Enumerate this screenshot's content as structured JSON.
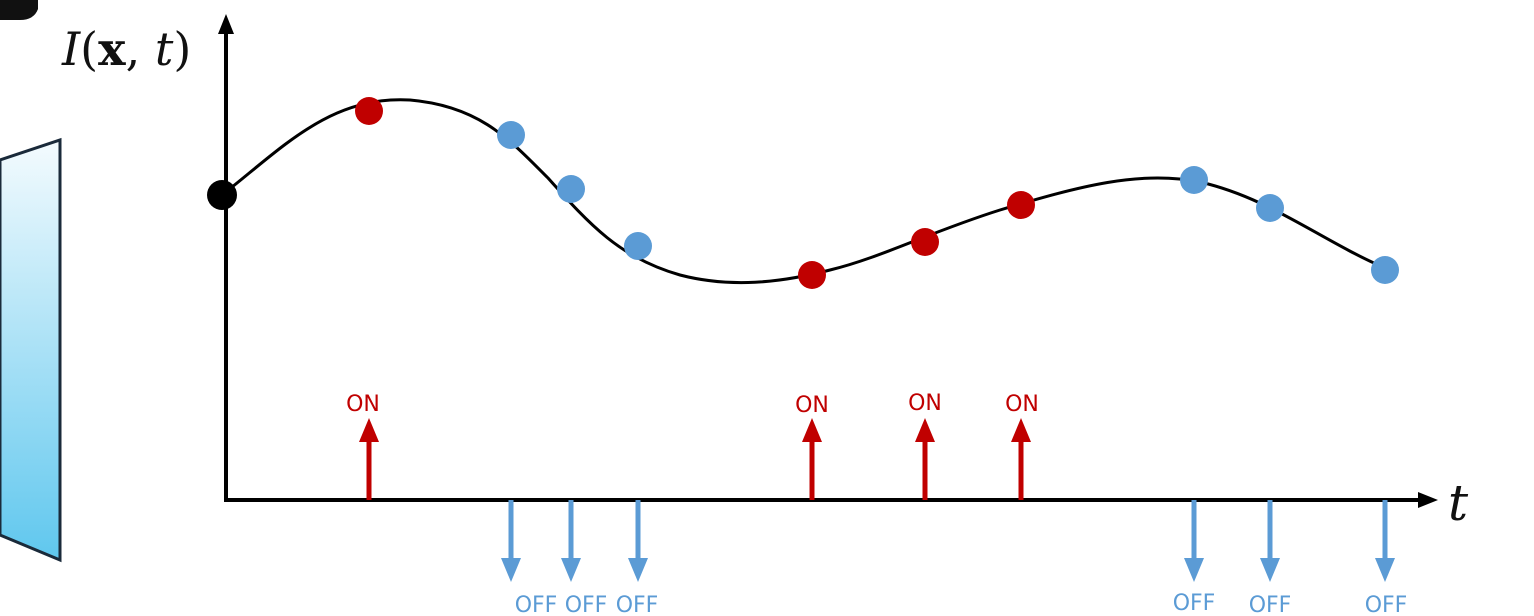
{
  "y_axis_label": {
    "prefix": "I",
    "open": "(",
    "bold_var": "x",
    "sep": ", ",
    "time_var": "t",
    "close": ")"
  },
  "x_axis_label": "t",
  "colors": {
    "on": "#c00000",
    "off": "#5b9bd5",
    "start": "#000000",
    "curve": "#000000",
    "panel_top": "#f4fbfe",
    "panel_bottom": "#5fc7ee"
  },
  "samples": [
    {
      "polarity": "start"
    },
    {
      "polarity": "ON",
      "label": "ON"
    },
    {
      "polarity": "OFF",
      "label": "OFF"
    },
    {
      "polarity": "OFF",
      "label": "OFF"
    },
    {
      "polarity": "OFF",
      "label": "OFF"
    },
    {
      "polarity": "ON",
      "label": "ON"
    },
    {
      "polarity": "ON",
      "label": "ON"
    },
    {
      "polarity": "ON",
      "label": "ON"
    },
    {
      "polarity": "OFF",
      "label": "OFF"
    },
    {
      "polarity": "OFF",
      "label": "OFF"
    },
    {
      "polarity": "OFF",
      "label": "OFF"
    }
  ]
}
